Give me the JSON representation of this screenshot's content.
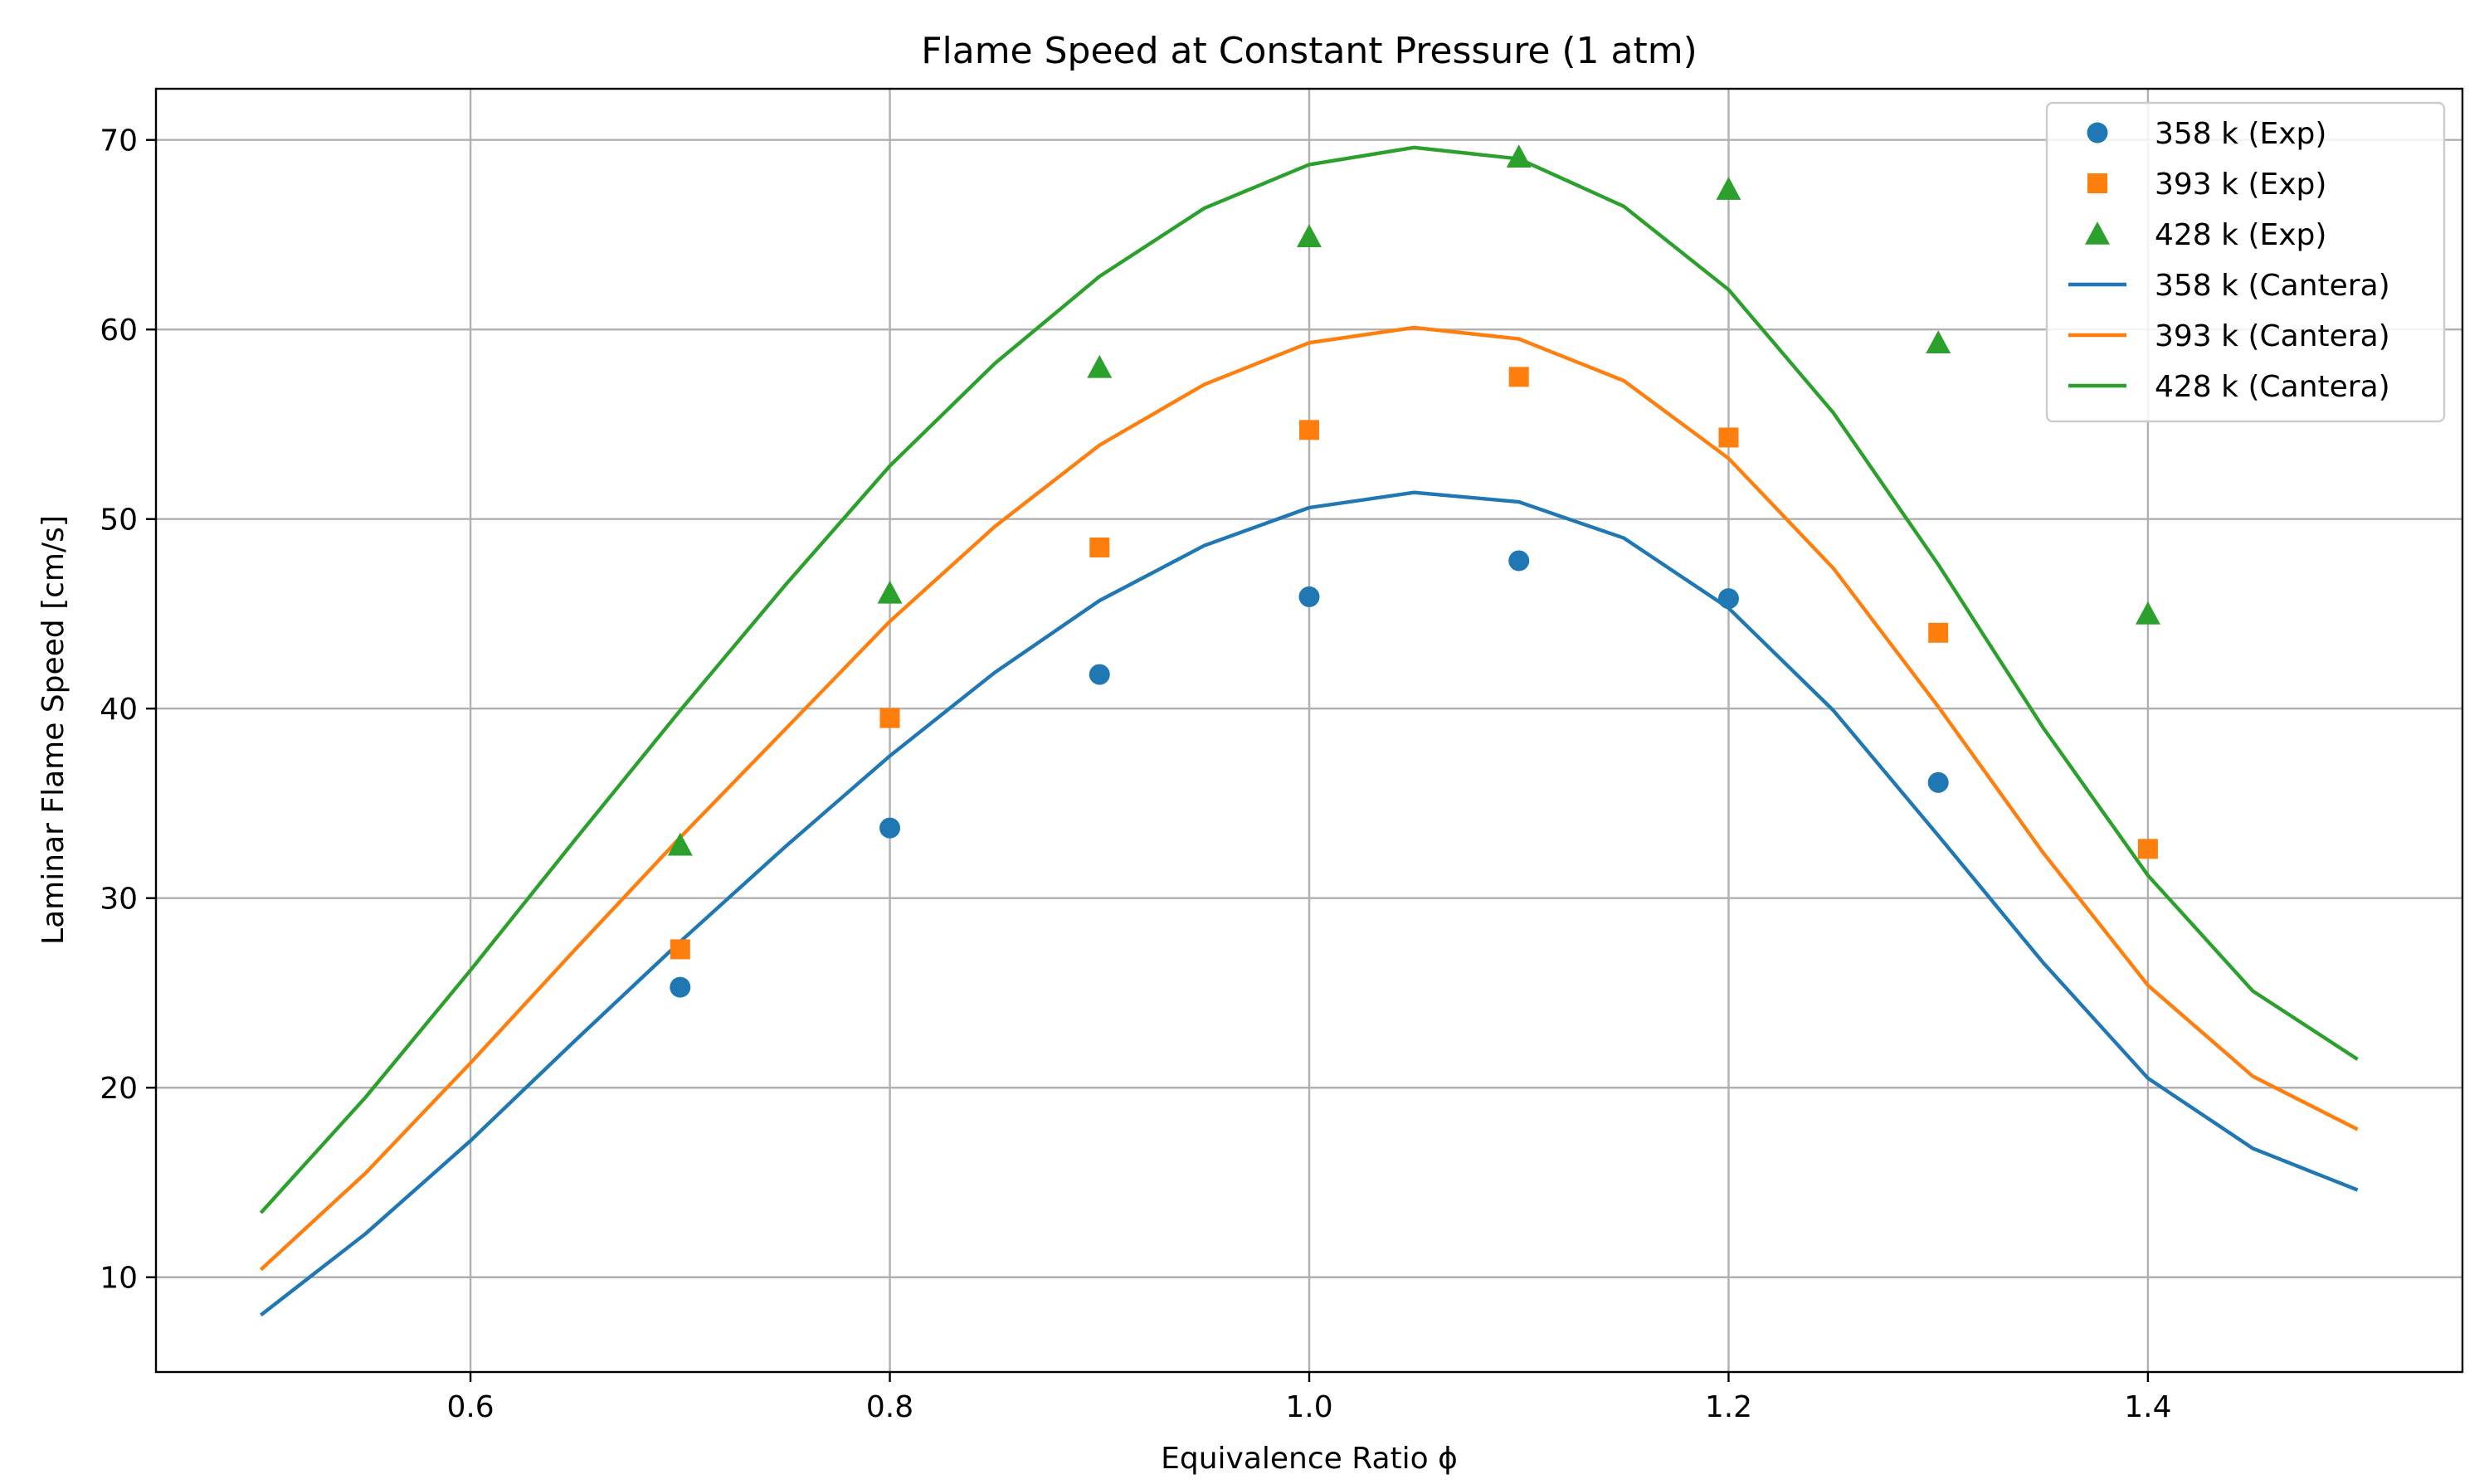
{
  "chart_data": {
    "type": "line",
    "title": "Flame Speed at Constant Pressure (1 atm)",
    "xlabel": "Equivalence Ratio ϕ",
    "ylabel": "Laminar Flame Speed [cm/s]",
    "xlim": [
      0.45,
      1.55
    ],
    "ylim": [
      5,
      72.7
    ],
    "xticks": [
      0.6,
      0.8,
      1.0,
      1.2,
      1.4
    ],
    "xtick_labels": [
      "0.6",
      "0.8",
      "1.0",
      "1.2",
      "1.4"
    ],
    "yticks": [
      10,
      20,
      30,
      40,
      50,
      60,
      70
    ],
    "ytick_labels": [
      "10",
      "20",
      "30",
      "40",
      "50",
      "60",
      "70"
    ],
    "grid": true,
    "legend_position": "upper right",
    "series": [
      {
        "name": "358 k (Exp)",
        "kind": "scatter",
        "marker": "circle",
        "color": "#1f77b4",
        "x": [
          0.7,
          0.8,
          0.9,
          1.0,
          1.1,
          1.2,
          1.3
        ],
        "y": [
          25.3,
          33.7,
          41.8,
          45.9,
          47.8,
          45.8,
          36.1
        ]
      },
      {
        "name": "393 k (Exp)",
        "kind": "scatter",
        "marker": "square",
        "color": "#ff7f0e",
        "x": [
          0.7,
          0.8,
          0.9,
          1.0,
          1.1,
          1.2,
          1.3,
          1.4
        ],
        "y": [
          27.3,
          39.5,
          48.5,
          54.7,
          57.5,
          54.3,
          44.0,
          32.6
        ]
      },
      {
        "name": "428 k (Exp)",
        "kind": "scatter",
        "marker": "triangle",
        "color": "#2ca02c",
        "x": [
          0.7,
          0.8,
          0.9,
          1.0,
          1.1,
          1.2,
          1.3,
          1.4
        ],
        "y": [
          32.8,
          46.1,
          58.0,
          64.9,
          69.1,
          67.4,
          59.3,
          45.0
        ]
      },
      {
        "name": "358 k (Cantera)",
        "kind": "line",
        "color": "#1f77b4",
        "x": [
          0.5,
          0.55,
          0.6,
          0.65,
          0.7,
          0.75,
          0.8,
          0.85,
          0.9,
          0.95,
          1.0,
          1.05,
          1.1,
          1.15,
          1.2,
          1.25,
          1.3,
          1.35,
          1.4,
          1.45,
          1.5
        ],
        "y": [
          8.0,
          12.3,
          17.2,
          22.5,
          27.7,
          32.7,
          37.5,
          41.9,
          45.7,
          48.6,
          50.6,
          51.4,
          50.9,
          49.0,
          45.3,
          39.9,
          33.3,
          26.6,
          20.5,
          16.8,
          14.6
        ]
      },
      {
        "name": "393 k (Cantera)",
        "kind": "line",
        "color": "#ff7f0e",
        "x": [
          0.5,
          0.55,
          0.6,
          0.65,
          0.7,
          0.75,
          0.8,
          0.85,
          0.9,
          0.95,
          1.0,
          1.05,
          1.1,
          1.15,
          1.2,
          1.25,
          1.3,
          1.35,
          1.4,
          1.45,
          1.5
        ],
        "y": [
          10.4,
          15.5,
          21.3,
          27.3,
          33.2,
          38.9,
          44.6,
          49.6,
          53.9,
          57.1,
          59.3,
          60.1,
          59.5,
          57.3,
          53.2,
          47.4,
          40.1,
          32.4,
          25.4,
          20.6,
          17.8
        ]
      },
      {
        "name": "428 k (Cantera)",
        "kind": "line",
        "color": "#2ca02c",
        "x": [
          0.5,
          0.55,
          0.6,
          0.65,
          0.7,
          0.75,
          0.8,
          0.85,
          0.9,
          0.95,
          1.0,
          1.05,
          1.1,
          1.15,
          1.2,
          1.25,
          1.3,
          1.35,
          1.4,
          1.45,
          1.5
        ],
        "y": [
          13.4,
          19.5,
          26.2,
          33.1,
          39.9,
          46.5,
          52.8,
          58.2,
          62.8,
          66.4,
          68.7,
          69.6,
          69.0,
          66.5,
          62.1,
          55.6,
          47.6,
          39.0,
          31.2,
          25.1,
          21.5
        ]
      }
    ]
  }
}
